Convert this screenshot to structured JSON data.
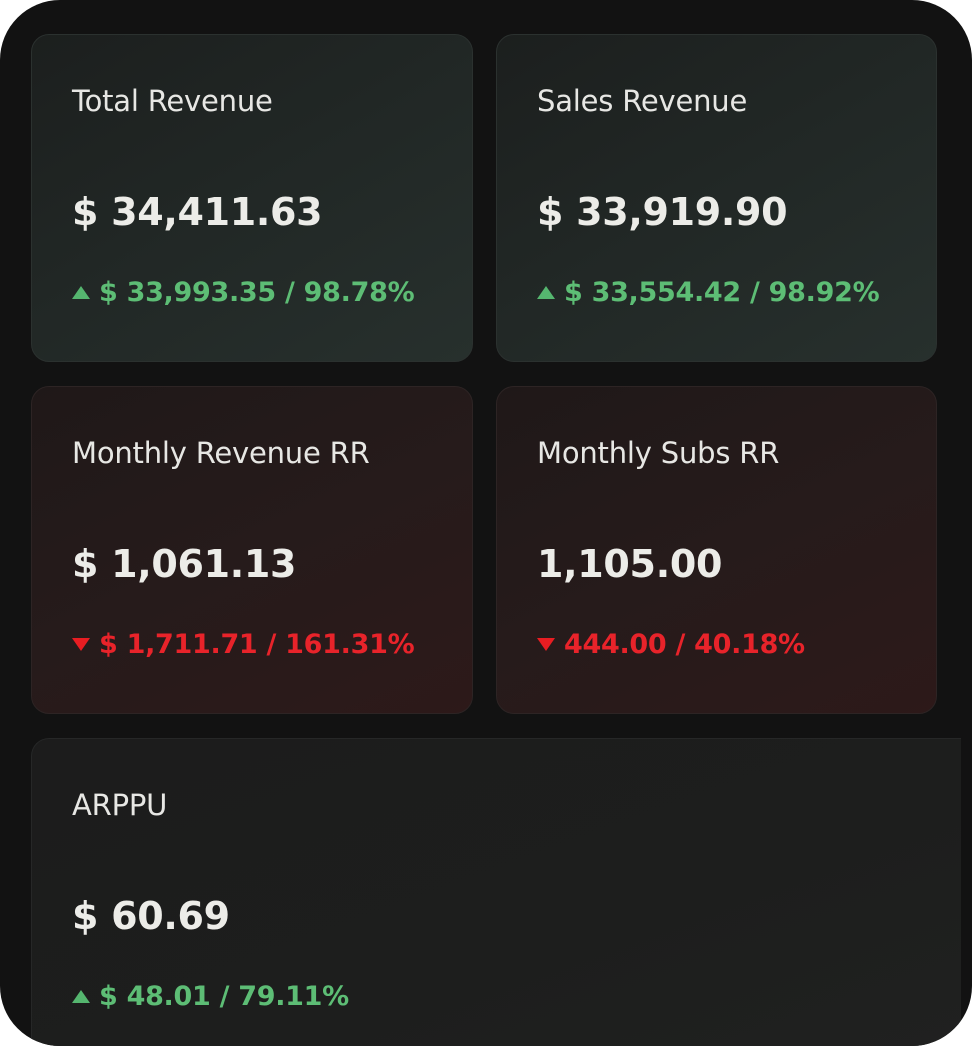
{
  "colors": {
    "positive": "#5dbd75",
    "negative": "#e8232a",
    "background": "#121212"
  },
  "cards": [
    {
      "label": "Total Revenue",
      "value": "$ 34,411.63",
      "delta": "$ 33,993.35 / 98.78%",
      "trend": "up",
      "trend_icon": "triangle-up-icon"
    },
    {
      "label": "Sales Revenue",
      "value": "$ 33,919.90",
      "delta": "$ 33,554.42 / 98.92%",
      "trend": "up",
      "trend_icon": "triangle-up-icon"
    },
    {
      "label": "Monthly Revenue RR",
      "value": "$ 1,061.13",
      "delta": "$ 1,711.71 / 161.31%",
      "trend": "down",
      "trend_icon": "triangle-down-icon"
    },
    {
      "label": "Monthly Subs RR",
      "value": "1,105.00",
      "delta": "444.00 / 40.18%",
      "trend": "down",
      "trend_icon": "triangle-down-icon"
    },
    {
      "label": "ARPPU",
      "value": "$ 60.69",
      "delta": "$ 48.01 / 79.11%",
      "trend": "up",
      "trend_icon": "triangle-up-icon"
    }
  ]
}
